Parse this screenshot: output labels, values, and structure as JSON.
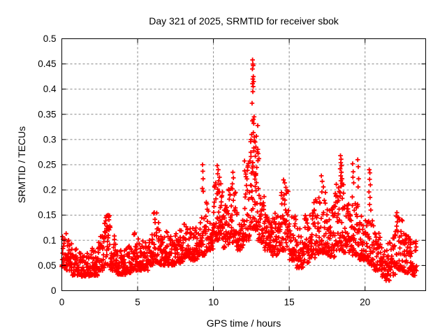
{
  "page": {
    "background": "#ffffff"
  },
  "chart_data": {
    "type": "scatter",
    "title": "Day 321 of 2025, SRMTID for receiver sbok",
    "xlabel": "GPS time / hours",
    "ylabel": "SRMTID / TECUs",
    "xlim": [
      0,
      24
    ],
    "ylim": [
      0,
      0.5
    ],
    "xticks": [
      0,
      5,
      10,
      15,
      20
    ],
    "xtick_labels": [
      "0",
      "5",
      "10",
      "15",
      "20"
    ],
    "yticks": [
      0,
      0.05,
      0.1,
      0.15,
      0.2,
      0.25,
      0.3,
      0.35,
      0.4,
      0.45,
      0.5
    ],
    "ytick_labels": [
      "0",
      "0.05",
      "0.1",
      "0.15",
      "0.2",
      "0.25",
      "0.3",
      "0.35",
      "0.4",
      "0.45",
      "0.5"
    ],
    "grid": true,
    "legend": "none",
    "marker": "plus-cross",
    "marker_color": "#ff0000",
    "grid_color": "#888888",
    "axis_color": "#000000",
    "x_data_range": [
      0,
      23.4
    ],
    "approx_point_count": 1950,
    "peak": {
      "time": 12.6,
      "value": 0.458
    },
    "density_segments": [
      [
        0.0,
        0.3,
        0.045,
        0.115,
        1
      ],
      [
        0.3,
        0.7,
        0.04,
        0.1,
        1
      ],
      [
        0.7,
        1.2,
        0.03,
        0.085,
        1
      ],
      [
        1.2,
        1.8,
        0.028,
        0.075,
        1
      ],
      [
        1.8,
        2.4,
        0.03,
        0.085,
        1
      ],
      [
        2.4,
        2.8,
        0.04,
        0.11,
        1
      ],
      [
        2.8,
        3.2,
        0.05,
        0.15,
        1
      ],
      [
        3.2,
        3.6,
        0.04,
        0.11,
        1
      ],
      [
        3.6,
        4.2,
        0.032,
        0.085,
        1
      ],
      [
        4.2,
        4.7,
        0.035,
        0.09,
        1
      ],
      [
        4.7,
        5.2,
        0.04,
        0.115,
        1
      ],
      [
        5.2,
        5.7,
        0.04,
        0.1,
        1
      ],
      [
        5.7,
        6.0,
        0.05,
        0.12,
        1
      ],
      [
        6.0,
        6.4,
        0.055,
        0.155,
        1
      ],
      [
        6.4,
        7.0,
        0.05,
        0.12,
        1
      ],
      [
        7.0,
        7.5,
        0.05,
        0.11,
        1
      ],
      [
        7.5,
        8.0,
        0.055,
        0.125,
        1
      ],
      [
        8.0,
        8.5,
        0.065,
        0.135,
        1
      ],
      [
        8.5,
        9.0,
        0.06,
        0.125,
        1
      ],
      [
        9.0,
        9.5,
        0.07,
        0.165,
        1
      ],
      [
        9.5,
        10.0,
        0.08,
        0.185,
        1
      ],
      [
        10.0,
        10.6,
        0.1,
        0.22,
        1.2
      ],
      [
        10.6,
        11.0,
        0.085,
        0.17,
        1
      ],
      [
        11.0,
        11.5,
        0.095,
        0.21,
        1
      ],
      [
        11.5,
        12.0,
        0.08,
        0.155,
        1
      ],
      [
        12.0,
        12.45,
        0.1,
        0.26,
        1.1
      ],
      [
        12.45,
        12.95,
        0.12,
        0.33,
        1.5
      ],
      [
        12.95,
        13.35,
        0.095,
        0.21,
        1
      ],
      [
        13.35,
        13.8,
        0.08,
        0.155,
        1
      ],
      [
        13.8,
        14.4,
        0.07,
        0.155,
        1
      ],
      [
        14.4,
        15.0,
        0.08,
        0.2,
        1
      ],
      [
        15.0,
        15.5,
        0.06,
        0.155,
        1
      ],
      [
        15.5,
        16.0,
        0.045,
        0.13,
        1
      ],
      [
        16.0,
        16.5,
        0.055,
        0.15,
        1
      ],
      [
        16.5,
        17.0,
        0.065,
        0.185,
        1
      ],
      [
        17.0,
        17.5,
        0.075,
        0.2,
        1
      ],
      [
        17.5,
        18.0,
        0.065,
        0.17,
        1
      ],
      [
        18.0,
        18.6,
        0.08,
        0.22,
        1.1
      ],
      [
        18.6,
        19.0,
        0.075,
        0.175,
        1
      ],
      [
        19.0,
        19.6,
        0.07,
        0.175,
        1
      ],
      [
        19.6,
        20.1,
        0.06,
        0.155,
        1
      ],
      [
        20.1,
        20.6,
        0.05,
        0.14,
        1
      ],
      [
        20.6,
        21.1,
        0.04,
        0.115,
        1
      ],
      [
        21.1,
        21.6,
        0.02,
        0.095,
        1
      ],
      [
        21.6,
        22.0,
        0.03,
        0.115,
        1
      ],
      [
        22.0,
        22.5,
        0.04,
        0.15,
        1
      ],
      [
        22.5,
        23.0,
        0.035,
        0.115,
        1
      ],
      [
        23.0,
        23.4,
        0.03,
        0.1,
        1
      ]
    ],
    "outlier_points": [
      [
        9.28,
        0.25
      ],
      [
        9.3,
        0.237
      ],
      [
        9.32,
        0.222
      ],
      [
        9.27,
        0.203
      ],
      [
        9.33,
        0.197
      ],
      [
        10.25,
        0.248
      ],
      [
        10.32,
        0.24
      ],
      [
        10.28,
        0.232
      ],
      [
        10.4,
        0.225
      ],
      [
        10.35,
        0.218
      ],
      [
        11.28,
        0.235
      ],
      [
        11.32,
        0.224
      ],
      [
        11.25,
        0.212
      ],
      [
        12.58,
        0.458
      ],
      [
        12.6,
        0.45
      ],
      [
        12.62,
        0.447
      ],
      [
        12.57,
        0.44
      ],
      [
        12.63,
        0.425
      ],
      [
        12.6,
        0.42
      ],
      [
        12.65,
        0.415
      ],
      [
        12.58,
        0.411
      ],
      [
        12.62,
        0.405
      ],
      [
        12.6,
        0.395
      ],
      [
        12.55,
        0.372
      ],
      [
        12.68,
        0.345
      ],
      [
        12.63,
        0.34
      ],
      [
        12.57,
        0.337
      ],
      [
        12.66,
        0.332
      ],
      [
        12.52,
        0.31
      ],
      [
        12.7,
        0.305
      ],
      [
        12.48,
        0.3
      ],
      [
        12.75,
        0.295
      ],
      [
        12.8,
        0.285
      ],
      [
        12.95,
        0.272
      ],
      [
        13.0,
        0.262
      ],
      [
        14.62,
        0.22
      ],
      [
        14.7,
        0.214
      ],
      [
        14.78,
        0.205
      ],
      [
        14.85,
        0.198
      ],
      [
        14.66,
        0.19
      ],
      [
        17.12,
        0.228
      ],
      [
        17.18,
        0.217
      ],
      [
        17.25,
        0.206
      ],
      [
        17.15,
        0.196
      ],
      [
        18.38,
        0.268
      ],
      [
        18.42,
        0.261
      ],
      [
        18.4,
        0.254
      ],
      [
        18.45,
        0.248
      ],
      [
        18.36,
        0.242
      ],
      [
        18.44,
        0.235
      ],
      [
        18.4,
        0.228
      ],
      [
        18.48,
        0.222
      ],
      [
        19.18,
        0.252
      ],
      [
        19.22,
        0.236
      ],
      [
        19.2,
        0.225
      ],
      [
        19.25,
        0.214
      ],
      [
        19.16,
        0.186
      ],
      [
        19.52,
        0.26
      ],
      [
        19.55,
        0.246
      ],
      [
        19.58,
        0.222
      ],
      [
        19.54,
        0.206
      ],
      [
        20.28,
        0.24
      ],
      [
        20.32,
        0.234
      ],
      [
        20.3,
        0.221
      ],
      [
        20.35,
        0.21
      ],
      [
        20.26,
        0.196
      ],
      [
        20.33,
        0.185
      ],
      [
        20.3,
        0.171
      ],
      [
        20.38,
        0.16
      ],
      [
        22.1,
        0.155
      ],
      [
        22.05,
        0.148
      ],
      [
        2.95,
        0.148
      ],
      [
        3.05,
        0.15
      ],
      [
        6.1,
        0.155
      ]
    ]
  }
}
